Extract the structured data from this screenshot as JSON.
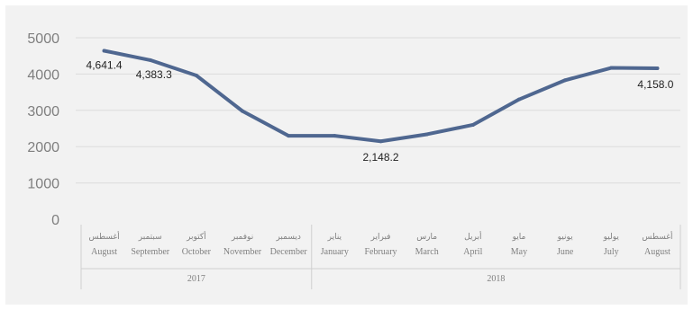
{
  "chart_data": {
    "type": "line",
    "title": "",
    "xlabel": "",
    "ylabel": "",
    "ylim": [
      0,
      5000
    ],
    "yticks": [
      0,
      1000,
      2000,
      3000,
      4000,
      5000
    ],
    "grid": true,
    "categories": [
      {
        "ar": "أغسطس",
        "en": "August"
      },
      {
        "ar": "سبتمبر",
        "en": "September"
      },
      {
        "ar": "أكتوبر",
        "en": "October"
      },
      {
        "ar": "نوفمبر",
        "en": "November"
      },
      {
        "ar": "ديسمبر",
        "en": "December"
      },
      {
        "ar": "يناير",
        "en": "January"
      },
      {
        "ar": "فبراير",
        "en": "February"
      },
      {
        "ar": "مارس",
        "en": "March"
      },
      {
        "ar": "أبريل",
        "en": "April"
      },
      {
        "ar": "مايو",
        "en": "May"
      },
      {
        "ar": "يونيو",
        "en": "June"
      },
      {
        "ar": "يوليو",
        "en": "July"
      },
      {
        "ar": "أغسطس",
        "en": "August"
      }
    ],
    "groups": [
      {
        "label": "2017",
        "start": 0,
        "end": 4
      },
      {
        "label": "2018",
        "start": 5,
        "end": 12
      }
    ],
    "series": [
      {
        "color": "#4f6790",
        "values": [
          4641.4,
          4383.3,
          3960,
          2980,
          2300,
          2300,
          2148.2,
          2340,
          2600,
          3300,
          3830,
          4170,
          4158.0
        ]
      }
    ],
    "data_labels": [
      {
        "index": 0,
        "text": "4,641.4"
      },
      {
        "index": 1,
        "text": "4,383.3"
      },
      {
        "index": 6,
        "text": "2,148.2"
      },
      {
        "index": 12,
        "text": "4,158.0"
      }
    ]
  }
}
